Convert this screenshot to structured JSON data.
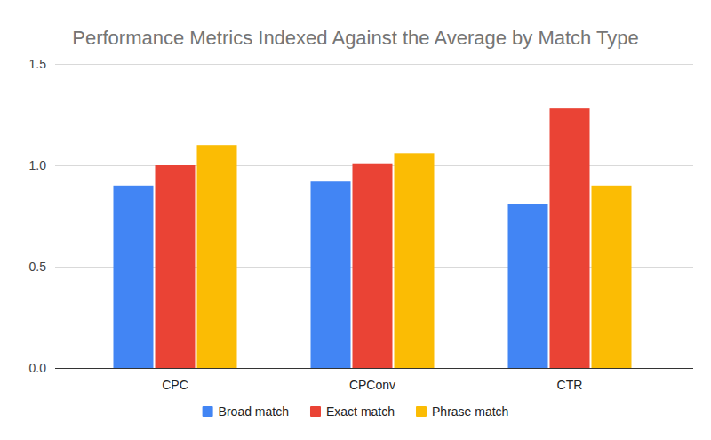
{
  "chart_data": {
    "type": "bar",
    "title": "Performance Metrics Indexed Against the Average by Match Type",
    "categories": [
      "CPC",
      "CPConv",
      "CTR"
    ],
    "series": [
      {
        "name": "Broad match",
        "color": "#4285f4",
        "values": [
          0.9,
          0.92,
          0.81
        ]
      },
      {
        "name": "Exact match",
        "color": "#ea4335",
        "values": [
          1.0,
          1.01,
          1.28
        ]
      },
      {
        "name": "Phrase match",
        "color": "#fbbc04",
        "values": [
          1.1,
          1.06,
          0.9
        ]
      }
    ],
    "ylim": [
      0,
      1.5
    ],
    "yticks": [
      {
        "value": 0,
        "label": "0.0"
      },
      0.5,
      {
        "value": 1,
        "label": "1.0"
      },
      1.5
    ],
    "grid": true,
    "legend": "bottom"
  }
}
